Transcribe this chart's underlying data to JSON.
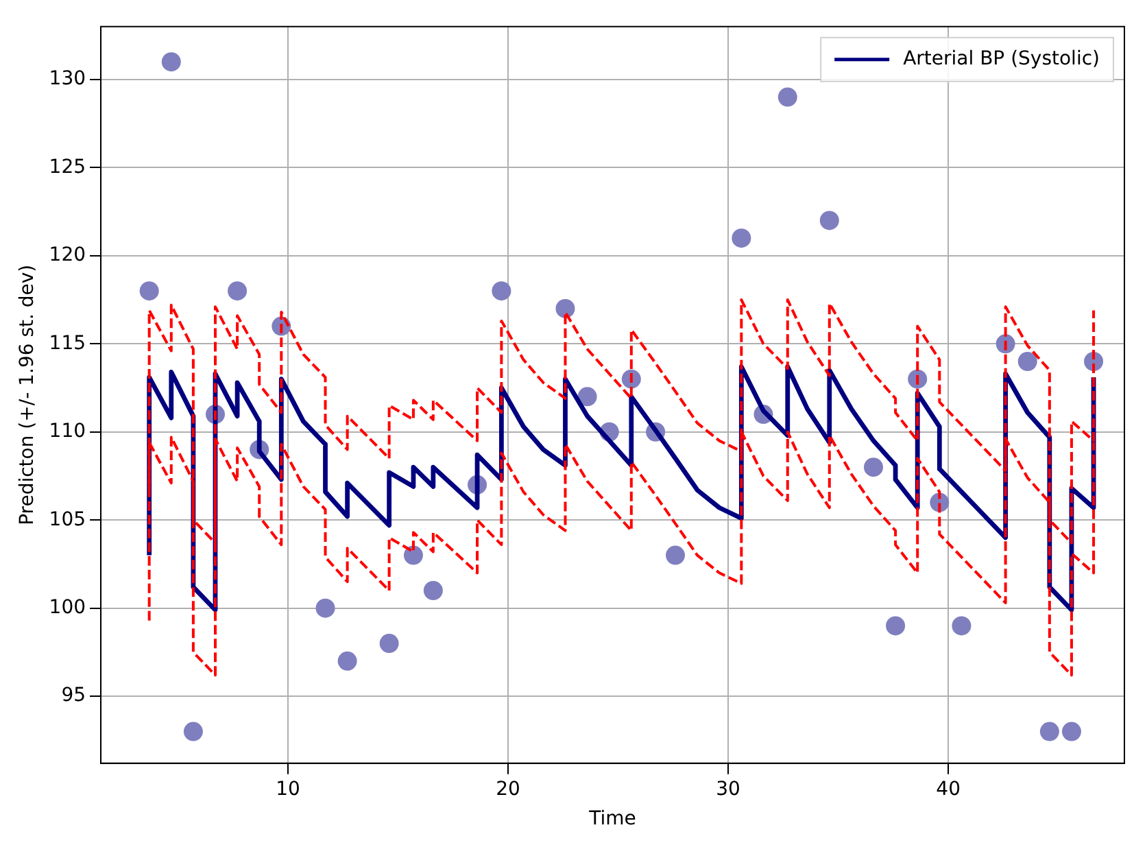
{
  "chart_data": {
    "type": "line",
    "xlabel": "Time",
    "ylabel": "Predicton (+/- 1.96 st. dev)",
    "xlim": [
      1.5,
      48.0
    ],
    "xticks": [
      10,
      20,
      30,
      40
    ],
    "ylim": [
      91.2,
      133.0
    ],
    "yticks": [
      95,
      100,
      105,
      110,
      115,
      120,
      125,
      130
    ],
    "grid": true,
    "legend": "top right",
    "series": [
      {
        "name": "Arterial BP (Systolic)",
        "type": "line",
        "color": "#000080",
        "line_style": "solid",
        "marker": "none",
        "x": [
          3.7,
          3.7,
          4.7,
          4.7,
          5.7,
          5.7,
          6.7,
          6.7,
          7.7,
          7.7,
          8.7,
          8.7,
          9.7,
          9.7,
          10.7,
          11.7,
          11.7,
          12.7,
          12.7,
          14.6,
          14.6,
          15.7,
          15.7,
          16.6,
          16.6,
          18.6,
          18.6,
          19.7,
          19.7,
          20.7,
          21.6,
          22.6,
          22.6,
          23.6,
          24.6,
          25.6,
          25.6,
          26.7,
          27.6,
          28.6,
          29.6,
          30.6,
          30.6,
          31.6,
          32.7,
          32.7,
          33.6,
          34.6,
          34.6,
          35.6,
          36.6,
          37.6,
          37.6,
          38.6,
          38.6,
          39.6,
          39.6,
          40.6,
          41.6,
          42.6,
          42.6,
          43.6,
          44.6,
          44.6,
          45.6,
          45.6,
          46.6,
          46.6
        ],
        "values": [
          103.0,
          113.1,
          110.8,
          113.4,
          110.9,
          101.2,
          99.9,
          113.3,
          110.9,
          112.8,
          110.6,
          108.9,
          107.3,
          113.0,
          110.6,
          109.3,
          106.6,
          105.2,
          107.1,
          104.7,
          107.7,
          106.9,
          108.0,
          106.9,
          108.0,
          105.7,
          108.7,
          107.3,
          112.5,
          110.3,
          109.0,
          108.1,
          113.0,
          110.9,
          109.5,
          108.1,
          112.0,
          110.1,
          108.5,
          106.7,
          105.7,
          105.1,
          113.7,
          111.2,
          109.8,
          113.7,
          111.3,
          109.4,
          113.5,
          111.3,
          109.5,
          108.1,
          107.3,
          105.7,
          112.2,
          110.3,
          107.9,
          106.6,
          105.3,
          104.0,
          113.3,
          111.1,
          109.7,
          101.2,
          99.9,
          106.8,
          105.7,
          113.1
        ]
      },
      {
        "type": "line",
        "color": "#ff0000",
        "line_style": "dashed",
        "marker": "none",
        "x": [
          3.7,
          3.7,
          4.7,
          4.7,
          5.7,
          5.7,
          6.7,
          6.7,
          7.7,
          7.7,
          8.7,
          8.7,
          9.7,
          9.7,
          10.7,
          11.7,
          11.7,
          12.7,
          12.7,
          14.6,
          14.6,
          15.7,
          15.7,
          16.6,
          16.6,
          18.6,
          18.6,
          19.7,
          19.7,
          20.7,
          21.6,
          22.6,
          22.6,
          23.6,
          24.6,
          25.6,
          25.6,
          26.7,
          27.6,
          28.6,
          29.6,
          30.6,
          30.6,
          31.6,
          32.7,
          32.7,
          33.6,
          34.6,
          34.6,
          35.6,
          36.6,
          37.6,
          37.6,
          38.6,
          38.6,
          39.6,
          39.6,
          40.6,
          41.6,
          42.6,
          42.6,
          43.6,
          44.6,
          44.6,
          45.6,
          45.6,
          46.6,
          46.6
        ],
        "values": [
          106.8,
          116.9,
          114.6,
          117.2,
          114.7,
          105.0,
          103.7,
          117.1,
          114.7,
          116.6,
          114.4,
          112.7,
          111.1,
          116.8,
          114.4,
          113.1,
          110.4,
          109.0,
          110.9,
          108.5,
          111.5,
          110.7,
          111.8,
          110.7,
          111.8,
          109.5,
          112.5,
          111.1,
          116.3,
          114.1,
          112.8,
          111.9,
          116.8,
          114.7,
          113.3,
          111.9,
          115.8,
          113.9,
          112.3,
          110.5,
          109.5,
          108.9,
          117.5,
          115.0,
          113.6,
          117.5,
          115.1,
          113.2,
          117.3,
          115.1,
          113.3,
          111.9,
          111.1,
          109.5,
          116.0,
          114.1,
          111.7,
          110.4,
          109.1,
          107.8,
          117.1,
          114.9,
          113.5,
          105.0,
          103.7,
          110.6,
          109.5,
          116.9
        ]
      },
      {
        "type": "line",
        "color": "#ff0000",
        "line_style": "dashed",
        "marker": "none",
        "x": [
          3.7,
          3.7,
          4.7,
          4.7,
          5.7,
          5.7,
          6.7,
          6.7,
          7.7,
          7.7,
          8.7,
          8.7,
          9.7,
          9.7,
          10.7,
          11.7,
          11.7,
          12.7,
          12.7,
          14.6,
          14.6,
          15.7,
          15.7,
          16.6,
          16.6,
          18.6,
          18.6,
          19.7,
          19.7,
          20.7,
          21.6,
          22.6,
          22.6,
          23.6,
          24.6,
          25.6,
          25.6,
          26.7,
          27.6,
          28.6,
          29.6,
          30.6,
          30.6,
          31.6,
          32.7,
          32.7,
          33.6,
          34.6,
          34.6,
          35.6,
          36.6,
          37.6,
          37.6,
          38.6,
          38.6,
          39.6,
          39.6,
          40.6,
          41.6,
          42.6,
          42.6,
          43.6,
          44.6,
          44.6,
          45.6,
          45.6,
          46.6,
          46.6
        ],
        "values": [
          99.3,
          109.4,
          107.1,
          109.7,
          107.2,
          97.5,
          96.2,
          109.6,
          107.2,
          109.1,
          106.9,
          105.2,
          103.6,
          109.3,
          106.9,
          105.6,
          102.9,
          101.5,
          103.4,
          101.0,
          104.0,
          103.2,
          104.3,
          103.2,
          104.3,
          102.0,
          105.0,
          103.6,
          108.8,
          106.6,
          105.3,
          104.4,
          109.3,
          107.2,
          105.8,
          104.4,
          108.3,
          106.4,
          104.8,
          103.0,
          102.0,
          101.4,
          110.0,
          107.5,
          106.1,
          110.0,
          107.6,
          105.7,
          109.8,
          107.6,
          105.8,
          104.4,
          103.6,
          102.0,
          108.5,
          106.6,
          104.2,
          102.9,
          101.6,
          100.3,
          109.6,
          107.4,
          106.0,
          97.5,
          96.2,
          103.1,
          102.0,
          109.4
        ]
      },
      {
        "type": "scatter",
        "color": "#7f7fbf",
        "marker": "circle",
        "x": [
          3.7,
          4.7,
          5.7,
          6.7,
          7.7,
          8.7,
          9.7,
          11.7,
          12.7,
          14.6,
          15.7,
          16.6,
          18.6,
          19.7,
          22.6,
          23.6,
          24.6,
          25.6,
          26.7,
          27.6,
          30.6,
          31.6,
          32.7,
          34.6,
          36.6,
          37.6,
          38.6,
          39.6,
          40.6,
          42.6,
          43.6,
          44.6,
          45.6,
          46.6
        ],
        "values": [
          118,
          131,
          93,
          111,
          118,
          109,
          116,
          100,
          97,
          98,
          103,
          101,
          107,
          118,
          117,
          112,
          110,
          113,
          110,
          103,
          121,
          111,
          129,
          122,
          108,
          99,
          113,
          106,
          99,
          115,
          114,
          93,
          93,
          114
        ]
      }
    ]
  }
}
